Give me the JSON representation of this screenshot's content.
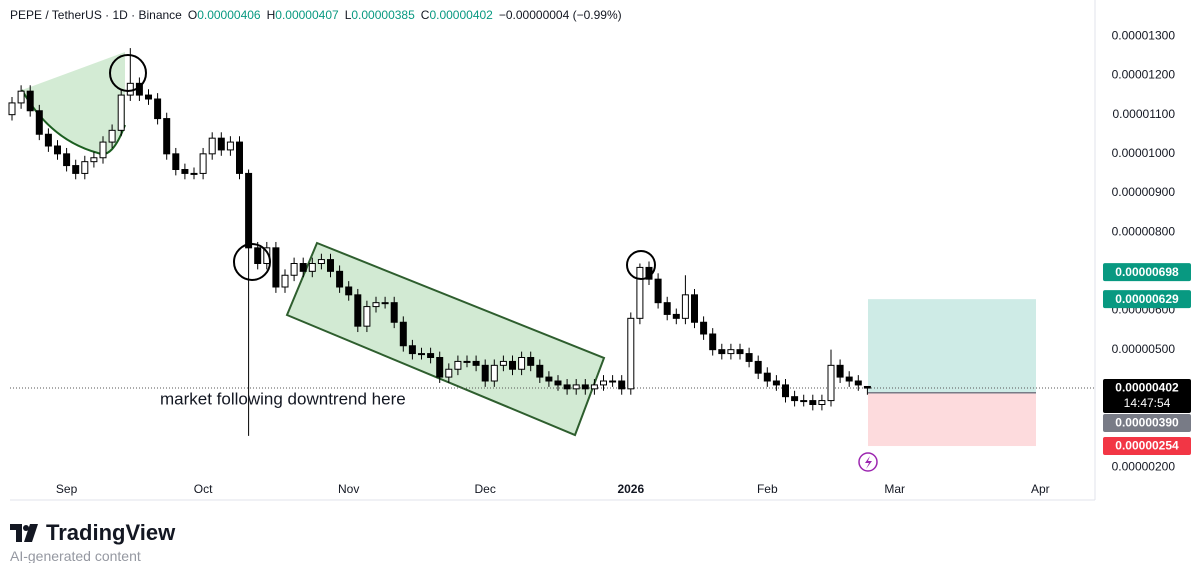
{
  "header": {
    "symbol": "PEPE / TetherUS · 1D · Binance",
    "ohlc": [
      {
        "key": "O",
        "value": "0.00000406"
      },
      {
        "key": "H",
        "value": "0.00000407"
      },
      {
        "key": "L",
        "value": "0.00000385"
      },
      {
        "key": "C",
        "value": "0.00000402"
      }
    ],
    "change": "−0.00000004 (−0.99%)"
  },
  "chart_data": {
    "type": "candlestick",
    "categories": [
      null,
      null,
      null,
      null,
      null,
      null,
      "Sep",
      null,
      null,
      null,
      null,
      null,
      null,
      null,
      null,
      null,
      null,
      null,
      null,
      null,
      null,
      "Oct",
      null,
      null,
      null,
      null,
      null,
      null,
      null,
      null,
      null,
      null,
      null,
      null,
      null,
      null,
      null,
      "Nov",
      null,
      null,
      null,
      null,
      null,
      null,
      null,
      null,
      null,
      null,
      null,
      null,
      null,
      null,
      "Dec",
      null,
      null,
      null,
      null,
      null,
      null,
      null,
      null,
      null,
      null,
      null,
      null,
      null,
      null,
      null,
      "2026",
      null,
      null,
      null,
      null,
      null,
      null,
      null,
      null,
      null,
      null,
      null,
      null,
      null,
      null,
      "Feb",
      null,
      null,
      null,
      null,
      null,
      null,
      null,
      null,
      null,
      null,
      null,
      null,
      null,
      "Mar",
      null,
      null,
      null,
      null,
      null,
      null,
      null,
      null,
      null,
      null,
      null,
      null,
      null,
      null,
      null,
      "Apr"
    ],
    "open": [
      1.1e-05,
      1.13e-05,
      1.16e-05,
      1.11e-05,
      1.05e-05,
      1.02e-05,
      1e-05,
      9.7e-06,
      9.5e-06,
      9.8e-06,
      9.9e-06,
      1.03e-05,
      1.06e-05,
      1.15e-05,
      1.18e-05,
      1.15e-05,
      1.14e-05,
      1.09e-05,
      1e-05,
      9.6e-06,
      9.5e-06,
      9.5e-06,
      1e-05,
      1.04e-05,
      1.01e-05,
      1.03e-05,
      9.5e-06,
      7.6e-06,
      7.2e-06,
      7.6e-06,
      6.6e-06,
      6.9e-06,
      7.2e-06,
      7e-06,
      7.2e-06,
      7.3e-06,
      7e-06,
      6.6e-06,
      6.4e-06,
      5.6e-06,
      6.1e-06,
      6.2e-06,
      6.2e-06,
      5.7e-06,
      5.1e-06,
      4.9e-06,
      4.9e-06,
      4.8e-06,
      4.3e-06,
      4.5e-06,
      4.7e-06,
      4.7e-06,
      4.6e-06,
      4.2e-06,
      4.6e-06,
      4.7e-06,
      4.5e-06,
      4.8e-06,
      4.6e-06,
      4.3e-06,
      4.2e-06,
      4.1e-06,
      4e-06,
      4.1e-06,
      4e-06,
      4.1e-06,
      4.2e-06,
      4.2e-06,
      4e-06,
      5.8e-06,
      7.1e-06,
      6.8e-06,
      6.2e-06,
      5.9e-06,
      5.8e-06,
      6.4e-06,
      5.7e-06,
      5.4e-06,
      5e-06,
      4.9e-06,
      5e-06,
      4.9e-06,
      4.7e-06,
      4.4e-06,
      4.2e-06,
      4.1e-06,
      3.8e-06,
      3.7e-06,
      3.7e-06,
      3.6e-06,
      3.7e-06,
      4.6e-06,
      4.3e-06,
      4.2e-06,
      4.06e-06,
      null,
      null,
      null,
      null,
      null,
      null,
      null,
      null,
      null,
      null,
      null,
      null,
      null,
      null,
      null,
      null,
      null,
      null,
      null
    ],
    "high": [
      1.145e-05,
      1.175e-05,
      1.175e-05,
      1.125e-05,
      1.065e-05,
      1.035e-05,
      1.015e-05,
      9.85e-06,
      9.95e-06,
      1.005e-05,
      1.045e-05,
      1.075e-05,
      1.165e-05,
      1.27e-05,
      1.195e-05,
      1.165e-05,
      1.155e-05,
      1.105e-05,
      1.015e-05,
      9.75e-06,
      9.65e-06,
      1.015e-05,
      1.055e-05,
      1.055e-05,
      1.045e-05,
      1.045e-05,
      9.6e-06,
      7.75e-06,
      7.75e-06,
      7.75e-06,
      7.05e-06,
      7.35e-06,
      7.35e-06,
      7.35e-06,
      7.45e-06,
      7.45e-06,
      7.15e-06,
      6.75e-06,
      6.55e-06,
      6.25e-06,
      6.35e-06,
      6.35e-06,
      6.35e-06,
      5.85e-06,
      5.25e-06,
      5.05e-06,
      5.05e-06,
      4.95e-06,
      4.65e-06,
      4.85e-06,
      4.85e-06,
      4.85e-06,
      4.75e-06,
      4.75e-06,
      4.85e-06,
      4.85e-06,
      4.95e-06,
      4.95e-06,
      4.75e-06,
      4.45e-06,
      4.35e-06,
      4.25e-06,
      4.25e-06,
      4.25e-06,
      4.25e-06,
      4.35e-06,
      4.35e-06,
      4.35e-06,
      5.95e-06,
      7.2e-06,
      7.25e-06,
      6.95e-06,
      6.35e-06,
      6.05e-06,
      6.9e-06,
      6.55e-06,
      5.85e-06,
      5.55e-06,
      5.15e-06,
      5.15e-06,
      5.15e-06,
      5.05e-06,
      4.85e-06,
      4.55e-06,
      4.35e-06,
      4.25e-06,
      3.95e-06,
      3.85e-06,
      3.85e-06,
      3.85e-06,
      5e-06,
      4.75e-06,
      4.45e-06,
      4.35e-06,
      4.07e-06,
      null,
      null,
      null,
      null,
      null,
      null,
      null,
      null,
      null,
      null,
      null,
      null,
      null,
      null,
      null,
      null,
      null,
      null,
      null
    ],
    "low": [
      1.085e-05,
      1.115e-05,
      1.095e-05,
      1.035e-05,
      1.005e-05,
      9.85e-06,
      9.55e-06,
      9.35e-06,
      9.35e-06,
      9.65e-06,
      9.75e-06,
      1.015e-05,
      1.045e-05,
      1.135e-05,
      1.135e-05,
      1.125e-05,
      1.075e-05,
      9.85e-06,
      9.45e-06,
      9.35e-06,
      9.35e-06,
      9.35e-06,
      9.85e-06,
      9.95e-06,
      9.95e-06,
      9.35e-06,
      2.8e-06,
      7.05e-06,
      7.05e-06,
      6.45e-06,
      6.45e-06,
      6.75e-06,
      6.85e-06,
      6.85e-06,
      7.05e-06,
      6.85e-06,
      6.45e-06,
      6.25e-06,
      5.45e-06,
      5.45e-06,
      5.95e-06,
      6.05e-06,
      5.55e-06,
      4.95e-06,
      4.75e-06,
      4.75e-06,
      4.65e-06,
      4.15e-06,
      4.15e-06,
      4.35e-06,
      4.55e-06,
      4.45e-06,
      4.05e-06,
      4.05e-06,
      4.45e-06,
      4.35e-06,
      4.35e-06,
      4.45e-06,
      4.15e-06,
      4.05e-06,
      3.95e-06,
      3.85e-06,
      3.85e-06,
      3.85e-06,
      3.85e-06,
      3.95e-06,
      4.05e-06,
      3.85e-06,
      3.85e-06,
      5.65e-06,
      6.65e-06,
      6.05e-06,
      5.75e-06,
      5.65e-06,
      5.65e-06,
      5.55e-06,
      5.25e-06,
      4.85e-06,
      4.75e-06,
      4.75e-06,
      4.75e-06,
      4.55e-06,
      4.25e-06,
      4.05e-06,
      3.95e-06,
      3.65e-06,
      3.55e-06,
      3.55e-06,
      3.45e-06,
      3.45e-06,
      3.55e-06,
      4.15e-06,
      4.05e-06,
      3.95e-06,
      3.85e-06,
      null,
      null,
      null,
      null,
      null,
      null,
      null,
      null,
      null,
      null,
      null,
      null,
      null,
      null,
      null,
      null,
      null,
      null,
      null
    ],
    "close": [
      1.13e-05,
      1.16e-05,
      1.11e-05,
      1.05e-05,
      1.02e-05,
      1e-05,
      9.7e-06,
      9.5e-06,
      9.8e-06,
      9.9e-06,
      1.03e-05,
      1.06e-05,
      1.15e-05,
      1.18e-05,
      1.15e-05,
      1.14e-05,
      1.09e-05,
      1e-05,
      9.6e-06,
      9.5e-06,
      9.5e-06,
      1e-05,
      1.04e-05,
      1.01e-05,
      1.03e-05,
      9.5e-06,
      7.6e-06,
      7.2e-06,
      7.6e-06,
      6.6e-06,
      6.9e-06,
      7.2e-06,
      7e-06,
      7.2e-06,
      7.3e-06,
      7e-06,
      6.6e-06,
      6.4e-06,
      5.6e-06,
      6.1e-06,
      6.2e-06,
      6.2e-06,
      5.7e-06,
      5.1e-06,
      4.9e-06,
      4.9e-06,
      4.8e-06,
      4.3e-06,
      4.5e-06,
      4.7e-06,
      4.7e-06,
      4.6e-06,
      4.2e-06,
      4.6e-06,
      4.7e-06,
      4.5e-06,
      4.8e-06,
      4.6e-06,
      4.3e-06,
      4.2e-06,
      4.1e-06,
      4e-06,
      4.1e-06,
      4e-06,
      4.1e-06,
      4.2e-06,
      4.2e-06,
      4e-06,
      5.8e-06,
      7.1e-06,
      6.8e-06,
      6.2e-06,
      5.9e-06,
      5.8e-06,
      6.4e-06,
      5.7e-06,
      5.4e-06,
      5e-06,
      4.9e-06,
      5e-06,
      4.9e-06,
      4.7e-06,
      4.4e-06,
      4.2e-06,
      4.1e-06,
      3.8e-06,
      3.7e-06,
      3.7e-06,
      3.6e-06,
      3.7e-06,
      4.6e-06,
      4.3e-06,
      4.2e-06,
      4.1e-06,
      4.02e-06,
      null,
      null,
      null,
      null,
      null,
      null,
      null,
      null,
      null,
      null,
      null,
      null,
      null,
      null,
      null,
      null,
      null,
      null,
      null
    ],
    "up_color": "#ffffff",
    "down_color": "#000000",
    "border_color": "#000000",
    "ylim": [
      1.8e-06,
      1.38e-05
    ],
    "yticks": [
      {
        "value": 2e-06,
        "label": "0.00000200"
      },
      {
        "value": 3e-06,
        "label": "0.00000300"
      },
      {
        "value": 4e-06,
        "label": "0.00000400"
      },
      {
        "value": 5e-06,
        "label": "0.00000500"
      },
      {
        "value": 6e-06,
        "label": "0.00000600"
      },
      {
        "value": 7e-06,
        "label": "0.00000700"
      },
      {
        "value": 8e-06,
        "label": "0.00000800"
      },
      {
        "value": 9e-06,
        "label": "0.00000900"
      },
      {
        "value": 1e-05,
        "label": "0.00001000"
      },
      {
        "value": 1.1e-05,
        "label": "0.00001100"
      },
      {
        "value": 1.2e-05,
        "label": "0.00001200"
      },
      {
        "value": 1.3e-05,
        "label": "0.00001300"
      }
    ],
    "grid": false,
    "price_labels": [
      {
        "value": 6.98e-06,
        "label": "0.00000698",
        "color": "#089981"
      },
      {
        "value": 6.29e-06,
        "label": "0.00000629",
        "color": "#089981"
      },
      {
        "value": 4.02e-06,
        "label": "0.00000402",
        "sublabel": "14:47:54",
        "color": "#000000"
      },
      {
        "value": 3.9e-06,
        "label": "0.00000390",
        "color": "#787b86"
      },
      {
        "value": 2.54e-06,
        "label": "0.00000254",
        "color": "#f23645"
      }
    ],
    "annotation": "market following downtrend here"
  },
  "footer": {
    "brand": "TradingView",
    "note": "AI-generated content"
  }
}
